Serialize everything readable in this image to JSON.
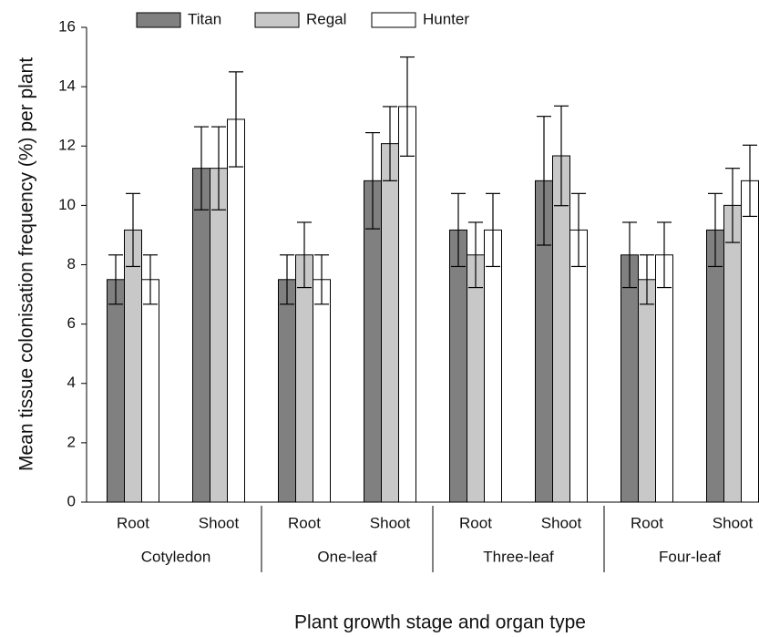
{
  "chart_data": {
    "type": "bar",
    "x_label": "Plant growth stage and organ type",
    "y_label": "Mean tissue colonisation frequency (%) per plant",
    "categories": [
      "Root",
      "Shoot",
      "Root",
      "Shoot",
      "Root",
      "Shoot",
      "Root",
      "Shoot"
    ],
    "groups": [
      "Cotyledon",
      "One-leaf",
      "Three-leaf",
      "Four-leaf"
    ],
    "series": [
      {
        "name": "Titan",
        "color": "#808080",
        "values": [
          7.5,
          11.25,
          7.5,
          10.83,
          9.17,
          10.83,
          8.33,
          9.17
        ],
        "errors": [
          0.83,
          1.4,
          0.83,
          1.62,
          1.23,
          2.17,
          1.1,
          1.23
        ]
      },
      {
        "name": "Regal",
        "color": "#c8c8c8",
        "values": [
          9.17,
          11.25,
          8.33,
          12.08,
          8.33,
          11.67,
          7.5,
          10.0
        ],
        "errors": [
          1.23,
          1.4,
          1.1,
          1.25,
          1.1,
          1.68,
          0.83,
          1.25
        ]
      },
      {
        "name": "Hunter",
        "color": "#ffffff",
        "values": [
          7.5,
          12.9,
          7.5,
          13.33,
          9.17,
          9.17,
          8.33,
          10.83
        ],
        "errors": [
          0.83,
          1.6,
          0.83,
          1.67,
          1.23,
          1.23,
          1.1,
          1.2
        ]
      }
    ],
    "ylim": [
      0,
      16
    ],
    "yticks": [
      0,
      2,
      4,
      6,
      8,
      10,
      12,
      14,
      16
    ]
  }
}
